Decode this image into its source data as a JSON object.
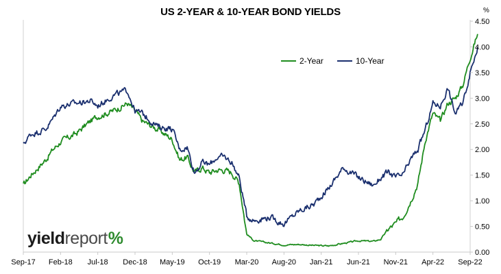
{
  "chart_data": {
    "type": "line",
    "title": "US 2-YEAR & 10-YEAR BOND YIELDS",
    "unit": "%",
    "ylim": [
      0,
      4.5
    ],
    "yticks": [
      "0.00",
      "0.50",
      "1.00",
      "1.50",
      "2.00",
      "2.50",
      "3.00",
      "3.50",
      "4.00",
      "4.50"
    ],
    "xticks": [
      "Sep-17",
      "Feb-18",
      "Jul-18",
      "Dec-18",
      "May-19",
      "Oct-19",
      "Mar-20",
      "Aug-20",
      "Jan-21",
      "Jun-21",
      "Nov-21",
      "Apr-22",
      "Sep-22"
    ],
    "grid": false,
    "legend_placement": "top-right",
    "series": [
      {
        "name": "2-Year",
        "color": "#1e8c1e",
        "x": [
          "2017-09",
          "2017-10",
          "2017-12",
          "2018-01",
          "2018-02",
          "2018-04",
          "2018-06",
          "2018-07",
          "2018-09",
          "2018-11",
          "2018-12",
          "2019-01",
          "2019-03",
          "2019-05",
          "2019-06",
          "2019-07",
          "2019-08",
          "2019-09",
          "2019-10",
          "2019-11",
          "2019-12",
          "2020-01",
          "2020-02",
          "2020-03",
          "2020-04",
          "2020-06",
          "2020-08",
          "2020-10",
          "2020-12",
          "2021-02",
          "2021-04",
          "2021-06",
          "2021-08",
          "2021-09",
          "2021-10",
          "2021-11",
          "2021-12",
          "2022-01",
          "2022-02",
          "2022-03",
          "2022-04",
          "2022-05",
          "2022-06",
          "2022-07",
          "2022-08",
          "2022-09",
          "2022-10"
        ],
        "y": [
          1.3,
          1.5,
          1.8,
          2.0,
          2.15,
          2.3,
          2.55,
          2.65,
          2.75,
          2.9,
          2.75,
          2.55,
          2.4,
          2.2,
          1.8,
          1.85,
          1.55,
          1.65,
          1.55,
          1.6,
          1.6,
          1.55,
          1.35,
          0.35,
          0.22,
          0.18,
          0.14,
          0.15,
          0.13,
          0.12,
          0.17,
          0.22,
          0.21,
          0.25,
          0.45,
          0.55,
          0.7,
          1.0,
          1.35,
          2.2,
          2.7,
          2.55,
          2.9,
          3.0,
          3.25,
          3.8,
          4.25
        ]
      },
      {
        "name": "10-Year",
        "color": "#1a2f6e",
        "x": [
          "2017-09",
          "2017-10",
          "2017-12",
          "2018-01",
          "2018-02",
          "2018-04",
          "2018-06",
          "2018-07",
          "2018-09",
          "2018-11",
          "2018-12",
          "2019-01",
          "2019-03",
          "2019-05",
          "2019-06",
          "2019-07",
          "2019-08",
          "2019-09",
          "2019-10",
          "2019-11",
          "2019-12",
          "2020-01",
          "2020-02",
          "2020-03",
          "2020-04",
          "2020-06",
          "2020-08",
          "2020-10",
          "2020-12",
          "2021-02",
          "2021-04",
          "2021-06",
          "2021-08",
          "2021-09",
          "2021-10",
          "2021-11",
          "2021-12",
          "2022-01",
          "2022-02",
          "2022-03",
          "2022-04",
          "2022-05",
          "2022-06",
          "2022-07",
          "2022-08",
          "2022-09",
          "2022-10"
        ],
        "y": [
          2.1,
          2.3,
          2.4,
          2.6,
          2.85,
          2.9,
          2.95,
          2.85,
          3.05,
          3.15,
          2.75,
          2.7,
          2.45,
          2.4,
          2.0,
          2.05,
          1.55,
          1.75,
          1.7,
          1.85,
          1.85,
          1.75,
          1.45,
          0.7,
          0.62,
          0.68,
          0.55,
          0.8,
          0.93,
          1.25,
          1.65,
          1.45,
          1.3,
          1.45,
          1.55,
          1.45,
          1.5,
          1.8,
          2.0,
          2.4,
          2.9,
          2.85,
          3.2,
          2.7,
          2.9,
          3.5,
          4.0
        ]
      }
    ]
  },
  "logo": {
    "text_main": "yield",
    "text_secondary": "report",
    "symbol": "%"
  }
}
